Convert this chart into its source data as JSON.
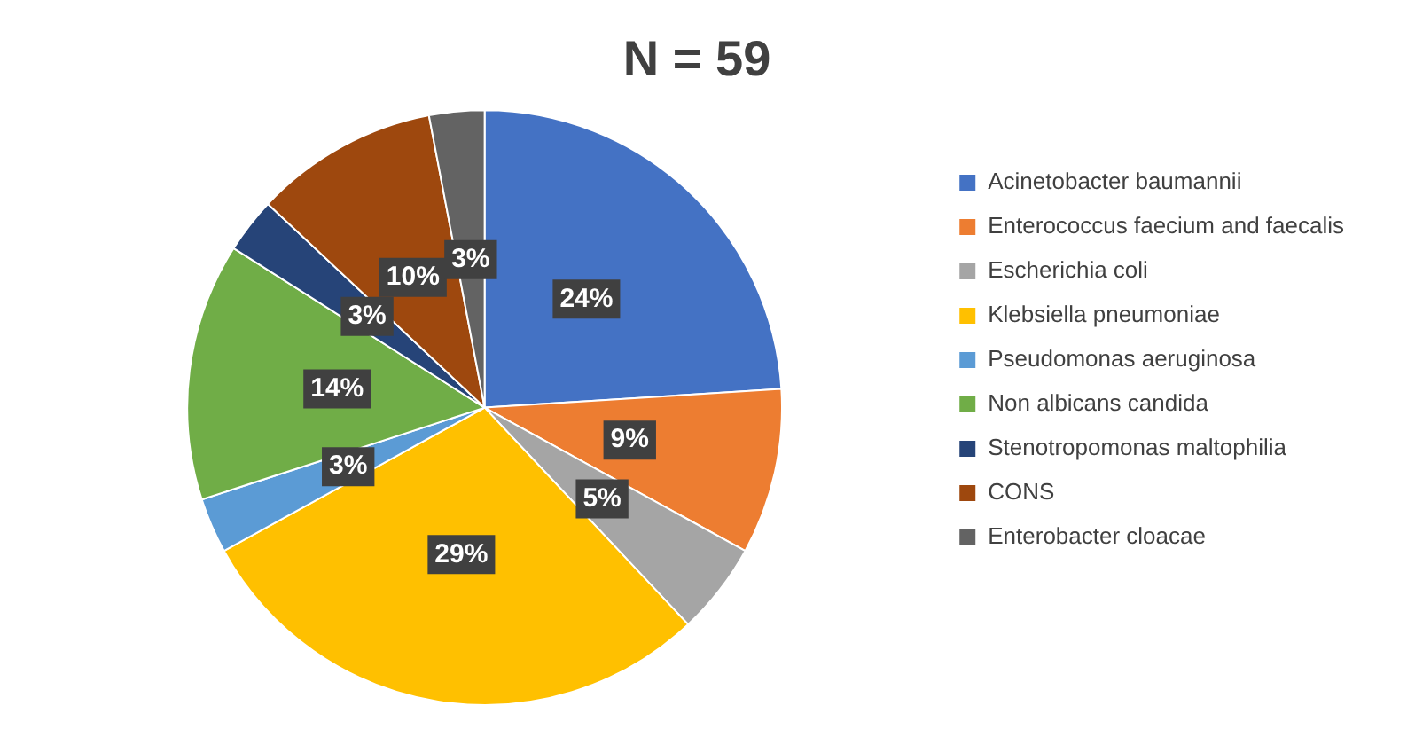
{
  "chart_data": {
    "type": "pie",
    "title": "N = 59",
    "categories": [
      "Acinetobacter baumannii",
      "Enterococcus faecium and faecalis",
      "Escherichia coli",
      "Klebsiella pneumoniae",
      "Pseudomonas aeruginosa",
      "Non albicans candida",
      "Stenotropomonas maltophilia",
      "CONS",
      "Enterobacter cloacae"
    ],
    "values": [
      24,
      9,
      5,
      29,
      3,
      14,
      3,
      10,
      3
    ],
    "value_labels": [
      "24%",
      "9%",
      "5%",
      "29%",
      "3%",
      "14%",
      "3%",
      "10%",
      "3%"
    ],
    "colors": [
      "#4472c4",
      "#ed7d31",
      "#a5a5a5",
      "#ffc000",
      "#5b9bd5",
      "#70ad47",
      "#264478",
      "#9e480e",
      "#636363"
    ],
    "legend": "right"
  }
}
